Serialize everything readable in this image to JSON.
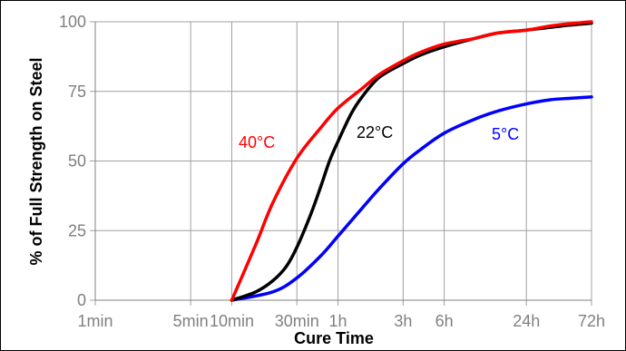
{
  "chart_data": {
    "type": "line",
    "xlabel": "Cure Time",
    "ylabel": "% of Full Strength on Steel",
    "x_scale": "log",
    "x_unit": "minutes",
    "x_ticks": [
      {
        "label": "1min",
        "value": 1
      },
      {
        "label": "5min",
        "value": 5
      },
      {
        "label": "10min",
        "value": 10
      },
      {
        "label": "30min",
        "value": 30
      },
      {
        "label": "1h",
        "value": 60
      },
      {
        "label": "3h",
        "value": 180
      },
      {
        "label": "6h",
        "value": 360
      },
      {
        "label": "24h",
        "value": 1440
      },
      {
        "label": "72h",
        "value": 4320
      }
    ],
    "ylim": [
      0,
      100
    ],
    "y_ticks": [
      0,
      25,
      50,
      75,
      100
    ],
    "grid": true,
    "legend": "inline labels",
    "series": [
      {
        "name": "40°C",
        "color": "#ff0000",
        "x": [
          10,
          15,
          20,
          30,
          45,
          60,
          90,
          120,
          180,
          240,
          360,
          600,
          900,
          1440,
          2160,
          3000,
          4320
        ],
        "y": [
          0,
          20,
          35,
          51,
          62,
          69,
          76,
          81,
          86,
          89,
          92,
          94,
          96,
          97,
          98.5,
          99.3,
          100
        ]
      },
      {
        "name": "22°C",
        "color": "#000000",
        "x": [
          10,
          15,
          20,
          25,
          30,
          38,
          45,
          52,
          60,
          75,
          90,
          120,
          180,
          240,
          360,
          600,
          900,
          1440,
          2160,
          3000,
          4320
        ],
        "y": [
          0,
          3,
          7,
          12,
          19,
          31,
          41,
          50,
          57,
          67,
          73,
          80,
          85,
          88,
          91,
          94,
          96,
          97,
          98,
          98.8,
          99.5
        ]
      },
      {
        "name": "5°C",
        "color": "#0000ff",
        "x": [
          10,
          20,
          30,
          45,
          60,
          90,
          120,
          180,
          240,
          360,
          600,
          900,
          1440,
          2160,
          3000,
          4320
        ],
        "y": [
          0,
          3,
          8,
          16,
          23,
          33,
          40,
          49,
          54,
          60,
          65,
          68,
          70.5,
          72,
          72.5,
          73
        ]
      }
    ]
  }
}
